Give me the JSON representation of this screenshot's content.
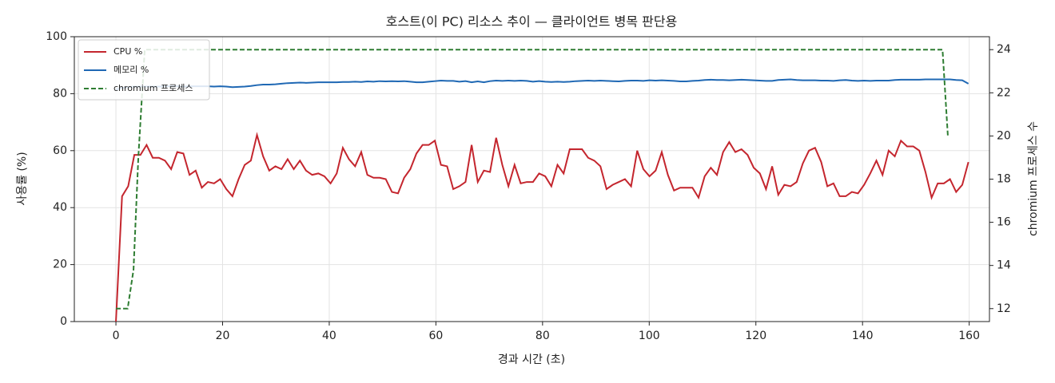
{
  "chart_data": {
    "type": "line",
    "title": "호스트(이 PC) 리소스 추이 — 클라이언트 병목 판단용",
    "x_label": "경과 시간 (초)",
    "y_label": "사용률 (%)",
    "y2_label": "chromium 프로세스 수",
    "xlim": [
      -7.8,
      163.8
    ],
    "xticks": [
      0,
      20,
      40,
      60,
      80,
      100,
      120,
      140,
      160
    ],
    "ylim": [
      0,
      100
    ],
    "yticks": [
      0,
      20,
      40,
      60,
      80,
      100
    ],
    "y2lim": [
      11.4,
      24.6
    ],
    "y2ticks": [
      12,
      14,
      16,
      18,
      20,
      22,
      24
    ],
    "grid": true,
    "legend": "upper left",
    "series": [
      {
        "name": "CPU %",
        "color": "#c4262e",
        "dash": false,
        "x": [
          0,
          1.15,
          2.3,
          3.45,
          4.6,
          5.75,
          6.9,
          8.05,
          9.2,
          10.35,
          11.5,
          12.65,
          13.8,
          14.95,
          16.1,
          17.25,
          18.4,
          19.55,
          20.7,
          21.85,
          23,
          24.15,
          25.3,
          26.45,
          27.6,
          28.75,
          29.9,
          31.05,
          32.2,
          33.35,
          34.5,
          35.65,
          36.8,
          37.95,
          39.1,
          40.25,
          41.4,
          42.55,
          43.7,
          44.85,
          46,
          47.15,
          48.3,
          49.45,
          50.6,
          51.75,
          52.9,
          54.05,
          55.2,
          56.35,
          57.5,
          58.65,
          59.8,
          60.95,
          62.1,
          63.25,
          64.4,
          65.55,
          66.7,
          67.85,
          69,
          70.15,
          71.3,
          72.45,
          73.6,
          74.75,
          75.9,
          77.05,
          78.2,
          79.35,
          80.5,
          81.65,
          82.8,
          83.95,
          85.1,
          86.25,
          87.4,
          88.55,
          89.7,
          90.85,
          92,
          93.15,
          94.3,
          95.45,
          96.6,
          97.75,
          98.9,
          100.05,
          101.2,
          102.35,
          103.5,
          104.65,
          105.8,
          106.95,
          108.1,
          109.25,
          110.4,
          111.55,
          112.7,
          113.85,
          115,
          116.15,
          117.3,
          118.45,
          119.6,
          120.75,
          121.9,
          123.05,
          124.2,
          125.35,
          126.5,
          127.65,
          128.8,
          129.95,
          131.1,
          132.25,
          133.4,
          134.55,
          135.7,
          136.85,
          138,
          139.15,
          140.3,
          141.45,
          142.6,
          143.75,
          144.9,
          146.05,
          147.2,
          148.35,
          149.5,
          150.65,
          151.8,
          152.95,
          154.1,
          155.25,
          156.4,
          157.55,
          158.7,
          159.85
        ],
        "values": [
          0,
          44,
          47.5,
          58.5,
          58.5,
          62,
          57.5,
          57.5,
          56.5,
          53.5,
          59.5,
          59,
          51.5,
          53,
          47,
          49,
          48.5,
          50,
          46.5,
          44,
          50,
          55,
          56.5,
          65.5,
          58,
          53,
          54.5,
          53.5,
          57,
          53.5,
          56.5,
          53,
          51.5,
          52,
          51,
          48.5,
          52,
          61,
          57,
          54.5,
          59.5,
          51.5,
          50.5,
          50.5,
          50,
          45.5,
          45,
          50.5,
          53.5,
          59,
          62,
          62,
          63.5,
          55,
          54.5,
          46.5,
          47.5,
          49,
          62,
          49,
          53,
          52.5,
          64.5,
          55,
          47.5,
          55,
          48.5,
          49,
          49,
          52,
          51,
          47.5,
          55,
          52,
          60.5,
          60.5,
          60.5,
          57.5,
          56.5,
          54.5,
          46.5,
          48,
          49,
          50,
          47.5,
          60,
          53.5,
          51,
          53,
          59.5,
          51.5,
          46,
          47,
          47,
          47,
          43.5,
          51,
          54,
          51.5,
          59.5,
          63,
          59.5,
          60.5,
          58.5,
          54,
          52,
          46.5,
          54.5,
          44.5,
          48,
          47.5,
          49,
          55.5,
          60,
          61,
          56,
          47.5,
          48.5,
          44,
          44,
          45.5,
          45,
          48,
          52,
          56.5,
          51.5,
          60,
          58,
          63.5,
          61.5,
          61.5,
          60,
          52.5,
          43.5,
          48.5,
          48.5,
          50,
          45.5,
          48,
          56
        ]
      },
      {
        "name": "메모리 %",
        "color": "#1f68b4",
        "dash": false,
        "x": [
          0,
          1.15,
          2.3,
          3.45,
          4.6,
          5.75,
          6.9,
          8.05,
          9.2,
          10.35,
          11.5,
          12.65,
          13.8,
          14.95,
          16.1,
          17.25,
          18.4,
          19.55,
          20.7,
          21.85,
          23,
          24.15,
          25.3,
          26.45,
          27.6,
          28.75,
          29.9,
          31.05,
          32.2,
          33.35,
          34.5,
          35.65,
          36.8,
          37.95,
          39.1,
          40.25,
          41.4,
          42.55,
          43.7,
          44.85,
          46,
          47.15,
          48.3,
          49.45,
          50.6,
          51.75,
          52.9,
          54.05,
          55.2,
          56.35,
          57.5,
          58.65,
          59.8,
          60.95,
          62.1,
          63.25,
          64.4,
          65.55,
          66.7,
          67.85,
          69,
          70.15,
          71.3,
          72.45,
          73.6,
          74.75,
          75.9,
          77.05,
          78.2,
          79.35,
          80.5,
          81.65,
          82.8,
          83.95,
          85.1,
          86.25,
          87.4,
          88.55,
          89.7,
          90.85,
          92,
          93.15,
          94.3,
          95.45,
          96.6,
          97.75,
          98.9,
          100.05,
          101.2,
          102.35,
          103.5,
          104.65,
          105.8,
          106.95,
          108.1,
          109.25,
          110.4,
          111.55,
          112.7,
          113.85,
          115,
          116.15,
          117.3,
          118.45,
          119.6,
          120.75,
          121.9,
          123.05,
          124.2,
          125.35,
          126.5,
          127.65,
          128.8,
          129.95,
          131.1,
          132.25,
          133.4,
          134.55,
          135.7,
          136.85,
          138,
          139.15,
          140.3,
          141.45,
          142.6,
          143.75,
          144.9,
          146.05,
          147.2,
          148.35,
          149.5,
          150.65,
          151.8,
          152.95,
          154.1,
          155.25,
          156.4,
          157.55,
          158.7,
          159.85
        ],
        "values": [
          81.5,
          82,
          82.3,
          82.5,
          82.5,
          82.5,
          82.5,
          82.5,
          82.6,
          82.6,
          82.6,
          82.5,
          82.6,
          82.6,
          82.6,
          82.6,
          82.5,
          82.6,
          82.5,
          82.3,
          82.4,
          82.5,
          82.7,
          83,
          83.2,
          83.2,
          83.3,
          83.5,
          83.7,
          83.8,
          83.9,
          83.8,
          83.9,
          84,
          84,
          84,
          84,
          84.1,
          84.1,
          84.2,
          84.1,
          84.3,
          84.2,
          84.4,
          84.3,
          84.4,
          84.3,
          84.4,
          84.2,
          84,
          84,
          84.2,
          84.4,
          84.6,
          84.5,
          84.5,
          84.2,
          84.4,
          84,
          84.3,
          84,
          84.4,
          84.6,
          84.5,
          84.6,
          84.5,
          84.6,
          84.5,
          84.2,
          84.4,
          84.2,
          84.1,
          84.2,
          84.1,
          84.2,
          84.4,
          84.5,
          84.6,
          84.5,
          84.6,
          84.5,
          84.4,
          84.3,
          84.5,
          84.6,
          84.6,
          84.5,
          84.7,
          84.6,
          84.7,
          84.6,
          84.5,
          84.3,
          84.3,
          84.5,
          84.6,
          84.8,
          84.9,
          84.8,
          84.8,
          84.7,
          84.8,
          84.9,
          84.8,
          84.7,
          84.6,
          84.5,
          84.5,
          84.8,
          84.9,
          85,
          84.8,
          84.7,
          84.7,
          84.7,
          84.6,
          84.6,
          84.5,
          84.7,
          84.8,
          84.6,
          84.5,
          84.6,
          84.5,
          84.6,
          84.6,
          84.6,
          84.8,
          84.9,
          84.9,
          84.9,
          84.9,
          85,
          85,
          85,
          85,
          85,
          84.8,
          84.7,
          83.5
        ]
      },
      {
        "name": "chromium 프로세스",
        "color": "#2e7d32",
        "dash": true,
        "axis": "y2",
        "x": [
          0,
          1,
          2.2,
          3.3,
          4.2,
          5.4,
          155,
          156
        ],
        "values": [
          12,
          12,
          12,
          13.8,
          19,
          24,
          24,
          20
        ]
      }
    ]
  }
}
